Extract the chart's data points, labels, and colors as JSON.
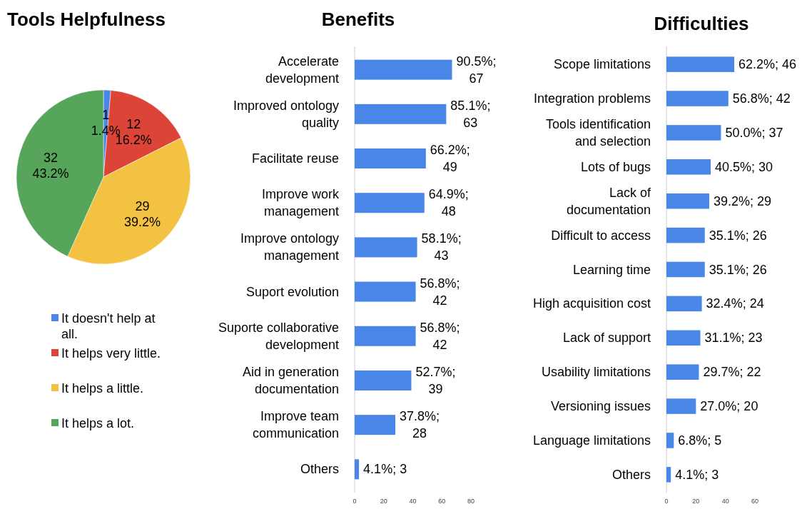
{
  "chart_data": [
    {
      "type": "pie",
      "title": "Tools Helpfulness",
      "categories": [
        "It doesn't help at all.",
        "It helps very little.",
        "It helps a little.",
        "It helps a lot."
      ],
      "values": [
        1,
        12,
        29,
        32
      ],
      "colors": [
        "#4a86e8",
        "#db4437",
        "#f4c242",
        "#57a55a"
      ],
      "value_labels": [
        "1\n1.4%",
        "12\n16.2%",
        "29\n39.2%",
        "32\n43.2%"
      ],
      "legend": "bottom"
    },
    {
      "type": "bar",
      "orientation": "horizontal",
      "title": "Benefits",
      "categories": [
        "Accelerate development",
        "Improved ontology quality",
        "Facilitate reuse",
        "Improve work management",
        "Improve ontology management",
        "Suport evolution",
        "Suporte collaborative development",
        "Aid in generation documentation",
        "Improve team communication",
        "Others"
      ],
      "values": [
        67,
        63,
        49,
        48,
        43,
        42,
        42,
        39,
        28,
        3
      ],
      "value_labels": [
        "90.5%; 67",
        "85.1%; 63",
        "66.2%; 49",
        "64.9%; 48",
        "58.1%; 43",
        "56.8%; 42",
        "56.8%; 42",
        "52.7%; 39",
        "37.8%; 28",
        "4.1%; 3"
      ],
      "color": "#4a86e8",
      "xlim": [
        0,
        80
      ],
      "xticks": [
        0,
        20,
        40,
        60,
        80
      ]
    },
    {
      "type": "bar",
      "orientation": "horizontal",
      "title": "Difficulties",
      "categories": [
        "Scope limitations",
        "Integration problems",
        "Tools identification and selection",
        "Lots of bugs",
        "Lack of documentation",
        "Difficult to access",
        "Learning time",
        "High acquisition cost",
        "Lack of support",
        "Usability limitations",
        "Versioning issues",
        "Language limitations",
        "Others"
      ],
      "values": [
        46,
        42,
        37,
        30,
        29,
        26,
        26,
        24,
        23,
        22,
        20,
        5,
        3
      ],
      "value_labels": [
        "62.2%; 46",
        "56.8%; 42",
        "50.0%; 37",
        "40.5%; 30",
        "39.2%; 29",
        "35.1%; 26",
        "35.1%; 26",
        "32.4%; 24",
        "31.1%; 23",
        "29.7%; 22",
        "27.0%; 20",
        "6.8%; 5",
        "4.1%; 3"
      ],
      "color": "#4a86e8",
      "xlim": [
        0,
        60
      ],
      "xticks": [
        0,
        20,
        40,
        60
      ]
    }
  ]
}
